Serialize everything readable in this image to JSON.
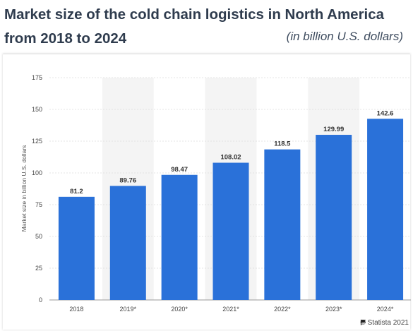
{
  "header": {
    "title": "Market size of the cold chain logistics in North America from 2018 to 2024",
    "subtitle": "(in billion U.S. dollars)"
  },
  "footer": {
    "credit": "© Statista 2021",
    "credit_icon": "flag-icon"
  },
  "colors": {
    "bar": "#2a71d9",
    "alt_band": "#f4f4f4",
    "grid": "#dcdcdc",
    "text": "#333333"
  },
  "chart_data": {
    "type": "bar",
    "title": "Market size of the cold chain logistics in North America from 2018 to 2024",
    "subtitle": "(in billion U.S. dollars)",
    "xlabel": "",
    "ylabel": "Market size in billion U.S. dollars",
    "categories": [
      "2018",
      "2019*",
      "2020*",
      "2021*",
      "2022*",
      "2023*",
      "2024*"
    ],
    "values": [
      81.2,
      89.76,
      98.47,
      108.02,
      118.5,
      129.99,
      142.6
    ],
    "value_labels": [
      "81.2",
      "89.76",
      "98.47",
      "108.02",
      "118.5",
      "129.99",
      "142.6"
    ],
    "ylim": [
      0,
      175
    ],
    "yticks": [
      0,
      25,
      50,
      75,
      100,
      125,
      150,
      175
    ],
    "grid": true,
    "alternating_bands": true,
    "legend": "none"
  }
}
